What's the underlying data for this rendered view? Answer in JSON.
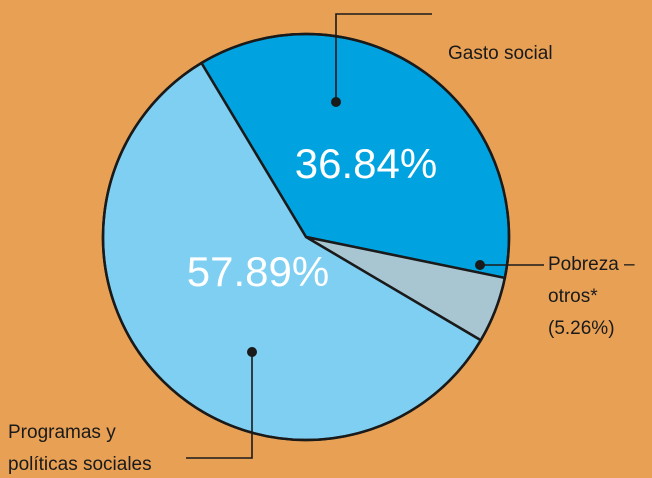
{
  "chart_data": {
    "type": "pie",
    "slices": [
      {
        "label": "Gasto social",
        "value": 36.84,
        "pct_label": "36.84%",
        "color": "#00a3df"
      },
      {
        "label": "Pobreza – otros*",
        "value": 5.26,
        "pct_label": "(5.26%)",
        "color": "#a8c5d2"
      },
      {
        "label": "Programas y políticas sociales",
        "value": 57.89,
        "pct_label": "57.89%",
        "color": "#7ecff2"
      }
    ],
    "label_lines": {
      "gasto": [
        "Gasto social"
      ],
      "pobreza": [
        "Pobreza –",
        "otros*",
        "(5.26%)"
      ],
      "programas": [
        "Programas y",
        "políticas sociales"
      ]
    },
    "background": "#e8a055",
    "outline_color": "#1a1a1a"
  }
}
